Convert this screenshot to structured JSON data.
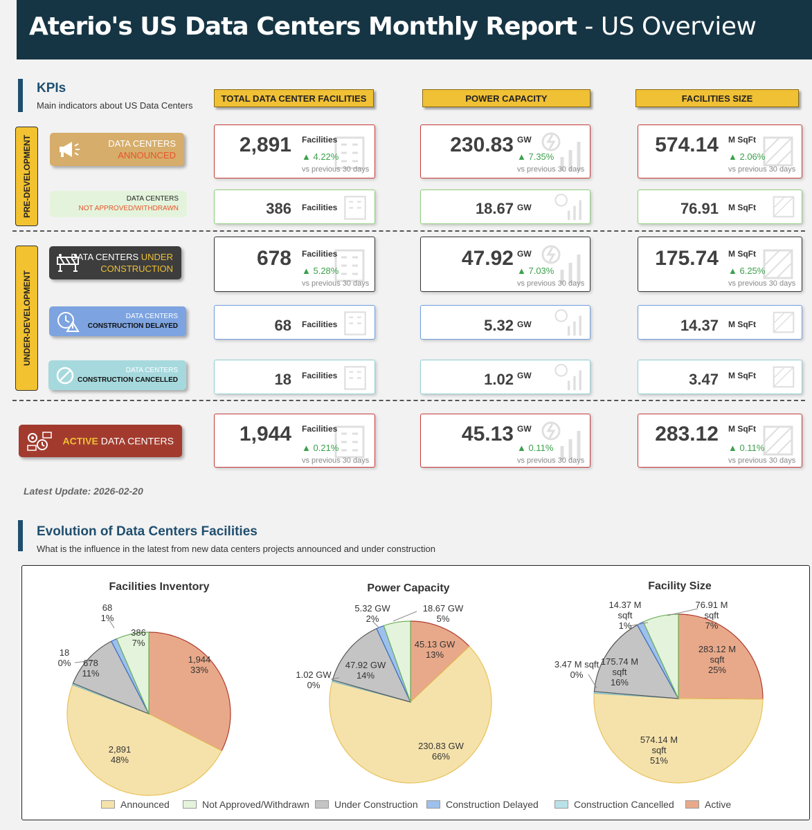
{
  "header": {
    "title_bold": "Aterio's US Data Centers Monthly Report",
    "title_rest": "- US Overview"
  },
  "kpis": {
    "title": "KPIs",
    "subtitle": "Main indicators about US Data Centers"
  },
  "columns": [
    "TOTAL DATA CENTER FACILITIES",
    "POWER CAPACITY",
    "FACILITIES SIZE"
  ],
  "phases": {
    "pre": "PRE-DEVELOPMENT",
    "under": "UNDER-DEVELOPMENT"
  },
  "categories": {
    "announced": {
      "line1": "DATA CENTERS",
      "line2": "ANNOUNCED"
    },
    "not_approved": {
      "line1": "DATA CENTERS",
      "line2": "NOT APPROVED/WITHDRAWN"
    },
    "under_construction": {
      "line1a": "DATA CENTERS",
      "line1b": "UNDER",
      "line2": "CONSTRUCTION"
    },
    "delayed": {
      "line1": "DATA CENTERS",
      "line2": "CONSTRUCTION DELAYED"
    },
    "cancelled": {
      "line1": "DATA CENTERS",
      "line2": "CONSTRUCTION CANCELLED"
    },
    "active": {
      "hl": "ACTIVE",
      "rest": "DATA CENTERS"
    }
  },
  "compare_text": "vs previous 30 days",
  "units": {
    "facilities": "Facilities",
    "power": "GW",
    "size": "M SqFt"
  },
  "rows": {
    "announced": {
      "facilities": {
        "value": "2,891",
        "change": "▲ 4.22%"
      },
      "power": {
        "value": "230.83",
        "change": "▲ 7.35%"
      },
      "size": {
        "value": "574.14",
        "change": "▲ 2.06%"
      }
    },
    "not_approved": {
      "facilities": {
        "value": "386"
      },
      "power": {
        "value": "18.67"
      },
      "size": {
        "value": "76.91"
      }
    },
    "under_construction": {
      "facilities": {
        "value": "678",
        "change": "▲ 5.28%"
      },
      "power": {
        "value": "47.92",
        "change": "▲ 7.03%"
      },
      "size": {
        "value": "175.74",
        "change": "▲ 6.25%"
      }
    },
    "delayed": {
      "facilities": {
        "value": "68"
      },
      "power": {
        "value": "5.32"
      },
      "size": {
        "value": "14.37"
      }
    },
    "cancelled": {
      "facilities": {
        "value": "18"
      },
      "power": {
        "value": "1.02"
      },
      "size": {
        "value": "3.47"
      }
    },
    "active": {
      "facilities": {
        "value": "1,944",
        "change": "▲ 0.21%"
      },
      "power": {
        "value": "45.13",
        "change": "▲ 0.11%"
      },
      "size": {
        "value": "283.12",
        "change": "▲ 0.11%"
      }
    }
  },
  "latest_update": "Latest Update: 2026-02-20",
  "evolution": {
    "title": "Evolution of Data Centers Facilities",
    "subtitle": "What is the influence in the latest from new data centers projects announced and under construction"
  },
  "colors": {
    "announced": "#f5e2ab",
    "not_approved": "#e4f4dc",
    "under_construction": "#c4c4c4",
    "delayed": "#9ec0ec",
    "cancelled": "#b8e2e8",
    "active": "#e8a98a",
    "header": "#163544",
    "yellow": "#f0c035"
  },
  "chart_data": [
    {
      "type": "pie",
      "title": "Facilities Inventory",
      "labels": [
        "Active",
        "Announced",
        "Construction Cancelled",
        "Under Construction",
        "Construction Delayed",
        "Not Approved/Withdrawn"
      ],
      "values": [
        1944,
        2891,
        18,
        678,
        68,
        386
      ],
      "data_labels": [
        [
          "1,944",
          "33%"
        ],
        [
          "2,891",
          "48%"
        ],
        [
          "18",
          "0%"
        ],
        [
          "678",
          "11%"
        ],
        [
          "68",
          "1%"
        ],
        [
          "386",
          "7%"
        ]
      ]
    },
    {
      "type": "pie",
      "title": "Power Capacity",
      "labels": [
        "Active",
        "Announced",
        "Construction Cancelled",
        "Under Construction",
        "Construction Delayed",
        "Not Approved/Withdrawn"
      ],
      "values": [
        45.13,
        230.83,
        1.02,
        47.92,
        5.32,
        18.67
      ],
      "data_labels": [
        [
          "45.13 GW",
          "13%"
        ],
        [
          "230.83 GW",
          "66%"
        ],
        [
          "1.02 GW",
          "0%"
        ],
        [
          "47.92 GW",
          "14%"
        ],
        [
          "5.32 GW",
          "2%"
        ],
        [
          "18.67 GW",
          "5%"
        ]
      ]
    },
    {
      "type": "pie",
      "title": "Facility Size",
      "labels": [
        "Active",
        "Announced",
        "Construction Cancelled",
        "Under Construction",
        "Construction Delayed",
        "Not Approved/Withdrawn"
      ],
      "values": [
        283.12,
        574.14,
        3.47,
        175.74,
        14.37,
        76.91
      ],
      "data_labels": [
        [
          "283.12 M",
          "sqft",
          "25%"
        ],
        [
          "574.14 M",
          "sqft",
          "51%"
        ],
        [
          "3.47 M sqft",
          "0%"
        ],
        [
          "175.74 M",
          "sqft",
          "16%"
        ],
        [
          "14.37 M",
          "sqft",
          "1%"
        ],
        [
          "76.91 M",
          "sqft",
          "7%"
        ]
      ]
    }
  ],
  "legend": [
    "Announced",
    "Not Approved/Withdrawn",
    "Under Construction",
    "Construction Delayed",
    "Construction Cancelled",
    "Active"
  ]
}
